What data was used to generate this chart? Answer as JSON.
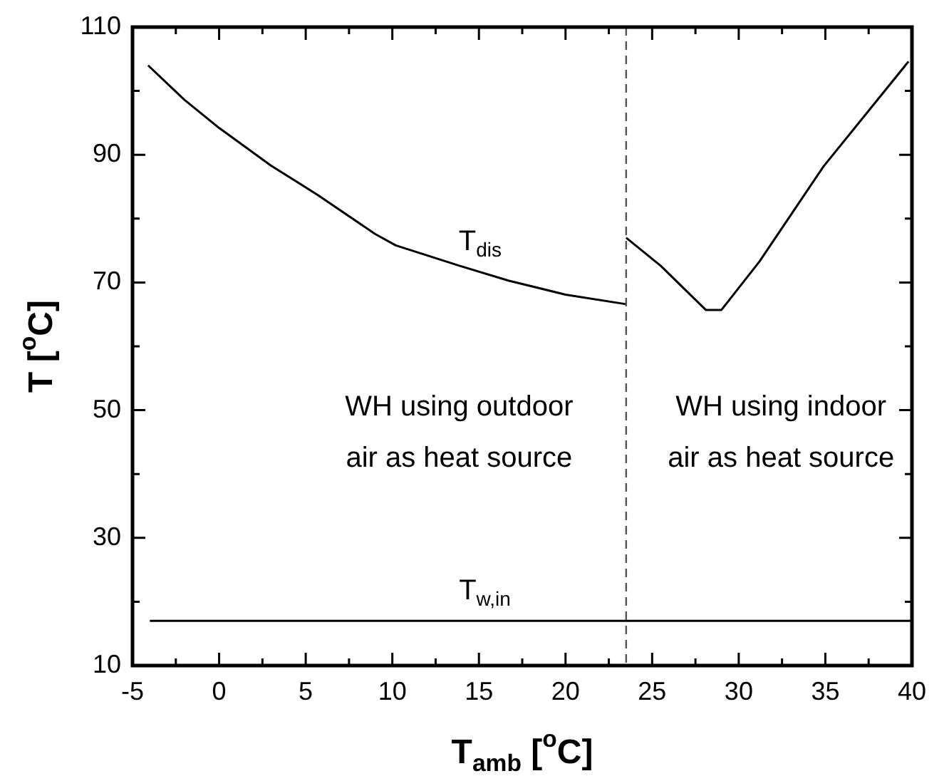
{
  "chart_data": {
    "type": "line",
    "xlabel": "T$_{amb}$ [$^{o}$C]",
    "ylabel": "T [$^{o}$C]",
    "xlim": [
      -5,
      40
    ],
    "ylim": [
      10,
      110
    ],
    "xticks": [
      -5,
      {
        "value": -2.5,
        "label": null
      },
      0,
      {
        "value": 2.5,
        "label": null
      },
      5,
      {
        "value": 7.5,
        "label": null
      },
      10,
      {
        "value": 12.5,
        "label": null
      },
      15,
      {
        "value": 17.5,
        "label": null
      },
      20,
      {
        "value": 22.5,
        "label": null
      },
      25,
      {
        "value": 27.5,
        "label": null
      },
      30,
      {
        "value": 32.5,
        "label": null
      },
      35,
      {
        "value": 37.5,
        "label": null
      },
      40
    ],
    "yticks": [
      10,
      {
        "value": 20,
        "label": null
      },
      30,
      {
        "value": 40,
        "label": null
      },
      50,
      {
        "value": 60,
        "label": null
      },
      70,
      {
        "value": 80,
        "label": null
      },
      90,
      {
        "value": 100,
        "label": null
      },
      110
    ],
    "grid": false,
    "legend": false,
    "marker": "none",
    "line_style": "solid",
    "series": [
      {
        "color": "#000000",
        "x": [
          -4.1,
          -2,
          0,
          3,
          5.7,
          9,
          10.2,
          13.9,
          16.7,
          20,
          23.5
        ],
        "values": [
          104,
          98.6,
          94.2,
          88.3,
          83.7,
          77.6,
          75.8,
          72.6,
          70.3,
          68.1,
          66.6
        ]
      },
      {
        "color": "#000000",
        "x": [
          23.5,
          25.5,
          28.1,
          29,
          31.2,
          34.9,
          39.8
        ],
        "values": [
          77,
          72.6,
          65.7,
          65.7,
          73.3,
          88.2,
          104.6
        ]
      },
      {
        "color": "#000000",
        "x": [
          -4,
          40
        ],
        "values": [
          17,
          17
        ]
      }
    ],
    "ref_lines": [
      {
        "axis": "x",
        "value": 23.5,
        "color": "#555555",
        "line_style": "dashed"
      }
    ],
    "annotations": [
      "T$_{dis}$",
      "T$_{w,in}$",
      "WH using outdoor\nair as heat source",
      "WH using indoor\nair as heat source"
    ]
  }
}
